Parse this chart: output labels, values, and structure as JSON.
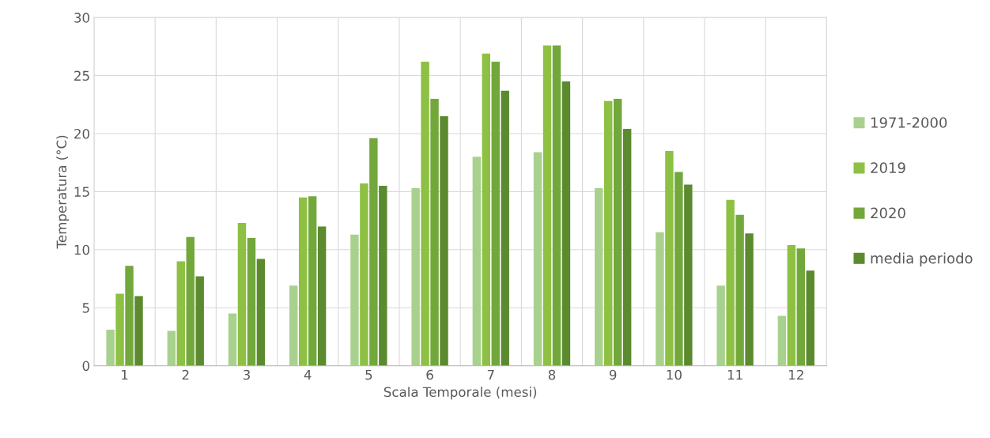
{
  "chart_data": {
    "type": "bar",
    "xlabel": "Scala Temporale (mesi)",
    "ylabel": "Temperatura (°C)",
    "categories": [
      "1",
      "2",
      "3",
      "4",
      "5",
      "6",
      "7",
      "8",
      "9",
      "10",
      "11",
      "12"
    ],
    "series": [
      {
        "name": "1971-2000",
        "color": "#a9d18e",
        "values": [
          3.1,
          3.0,
          4.5,
          6.9,
          11.3,
          15.3,
          18.0,
          18.4,
          15.3,
          11.5,
          6.9,
          4.3
        ]
      },
      {
        "name": "2019",
        "color": "#8dc043",
        "values": [
          6.2,
          9.0,
          12.3,
          14.5,
          15.7,
          26.2,
          26.9,
          27.6,
          22.8,
          18.5,
          14.3,
          10.4
        ]
      },
      {
        "name": "2020",
        "color": "#72a83b",
        "values": [
          8.6,
          11.1,
          11.0,
          14.6,
          19.6,
          23.0,
          26.2,
          27.6,
          23.0,
          16.7,
          13.0,
          10.1
        ]
      },
      {
        "name": "media periodo",
        "color": "#5b8a2f",
        "values": [
          6.0,
          7.7,
          9.2,
          12.0,
          15.5,
          21.5,
          23.7,
          24.5,
          20.4,
          15.6,
          11.4,
          8.2
        ]
      }
    ],
    "ylim": [
      0,
      30
    ],
    "yticks": [
      0,
      5,
      10,
      15,
      20,
      25,
      30
    ],
    "grid": true,
    "legend": "right"
  }
}
